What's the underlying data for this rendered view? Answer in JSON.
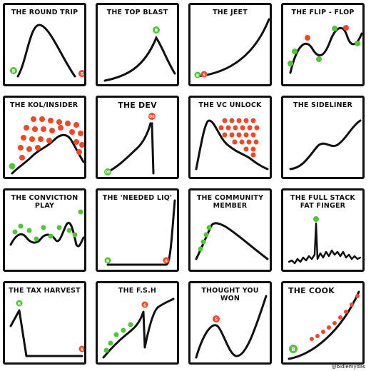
{
  "colors": {
    "buy": "#55c23c",
    "sell": "#e84a2a",
    "line": "#111111"
  },
  "panels": [
    {
      "title": "THE ROUND TRIP"
    },
    {
      "title": "THE TOP BLAST"
    },
    {
      "title": "THE JEET"
    },
    {
      "title": "THE FLIP - FLOP"
    },
    {
      "title": "THE KOL/INSIDER"
    },
    {
      "title": "THE DEV"
    },
    {
      "title": "THE VC UNLOCK"
    },
    {
      "title": "THE SIDELINER"
    },
    {
      "title": "THE CONVICTION PLAY"
    },
    {
      "title": "THE 'NEEDED LIQ'"
    },
    {
      "title": "THE COMMUNITY\nMEMBER"
    },
    {
      "title": "THE FULL STACK\nFAT FINGER"
    },
    {
      "title": "THE TAX HARVEST"
    },
    {
      "title": "THE F.S.H"
    },
    {
      "title": "THOUGHT YOU WON"
    },
    {
      "title": "THE COOK"
    }
  ],
  "markers": {
    "buy": "B",
    "sell": "S",
    "dev": "DE"
  },
  "credit": "@bidlemydas"
}
